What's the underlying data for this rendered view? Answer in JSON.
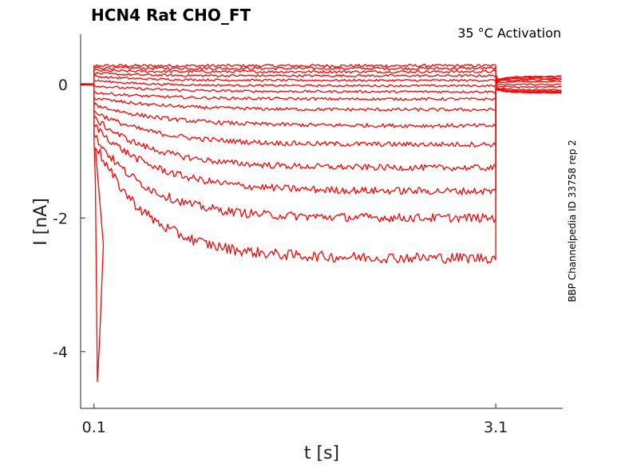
{
  "chart_data": {
    "type": "line",
    "title": "HCN4  Rat  CHO_FT",
    "subtitle": "35 °C  Activation",
    "xlabel": "t [s]",
    "ylabel": "I [nA]",
    "side_note": "BBP Channelpedia ID 33758 rep 2",
    "xlim": [
      0.0,
      3.6
    ],
    "ylim": [
      -4.85,
      0.75
    ],
    "xticks": [
      0.1,
      3.1
    ],
    "xtick_labels": [
      "0.1",
      "3.1"
    ],
    "yticks": [
      0,
      -2,
      -4
    ],
    "ytick_labels": [
      "0",
      "-2",
      "-4"
    ],
    "grid": false,
    "line_color": "#ff0000",
    "step_start": 0.1,
    "step_end": 3.1,
    "series": [
      {
        "onset": 0.28,
        "steady": 0.28,
        "tail": 0.12,
        "tau": 0.3
      },
      {
        "onset": 0.25,
        "steady": 0.24,
        "tail": 0.11,
        "tau": 0.3
      },
      {
        "onset": 0.21,
        "steady": 0.19,
        "tail": 0.09,
        "tau": 0.3
      },
      {
        "onset": 0.17,
        "steady": 0.13,
        "tail": 0.07,
        "tau": 0.3
      },
      {
        "onset": 0.12,
        "steady": 0.06,
        "tail": 0.04,
        "tau": 0.4
      },
      {
        "onset": 0.06,
        "steady": -0.02,
        "tail": 0.0,
        "tau": 0.4
      },
      {
        "onset": -0.02,
        "steady": -0.11,
        "tail": -0.04,
        "tau": 0.5
      },
      {
        "onset": -0.12,
        "steady": -0.22,
        "tail": -0.08,
        "tau": 0.5
      },
      {
        "onset": -0.2,
        "steady": -0.38,
        "tail": -0.1,
        "tau": 0.5
      },
      {
        "onset": -0.3,
        "steady": -0.62,
        "tail": -0.12,
        "tau": 0.5
      },
      {
        "onset": -0.4,
        "steady": -0.9,
        "tail": -0.12,
        "tau": 0.45
      },
      {
        "onset": -0.5,
        "steady": -1.25,
        "tail": -0.12,
        "tau": 0.45
      },
      {
        "onset": -0.6,
        "steady": -1.6,
        "tail": -0.12,
        "tau": 0.45
      },
      {
        "onset": -0.75,
        "steady": -2.0,
        "tail": -0.12,
        "tau": 0.4
      },
      {
        "onset": -0.85,
        "steady": -2.6,
        "tail": -0.12,
        "tau": 0.4
      }
    ],
    "transient_min": -4.45
  }
}
